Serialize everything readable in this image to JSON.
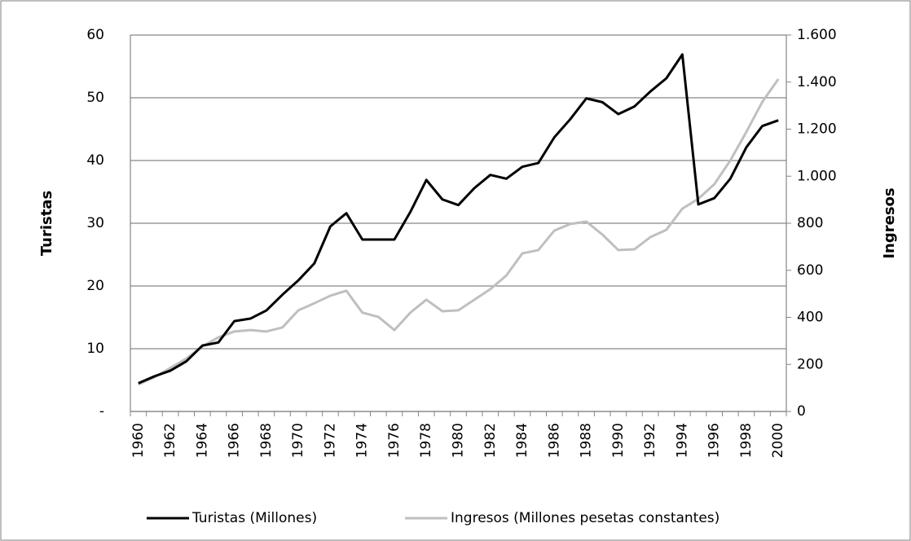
{
  "chart_data": {
    "type": "line",
    "y_label": "Turistas",
    "y2_label": "Ingresos",
    "categories": [
      "1960",
      null,
      "1962",
      null,
      "1964",
      null,
      "1966",
      null,
      "1968",
      null,
      "1970",
      null,
      "1972",
      null,
      "1974",
      null,
      "1976",
      null,
      "1978",
      null,
      "1980",
      null,
      "1982",
      null,
      "1984",
      null,
      "1986",
      null,
      "1988",
      null,
      "1990",
      null,
      "1992",
      null,
      "1994",
      null,
      "1996",
      null,
      "1998",
      null,
      "2000"
    ],
    "series": [
      {
        "name": "Turistas (Millones)",
        "color": "#000000",
        "values": [
          4.5,
          5.6,
          6.5,
          8.0,
          10.5,
          11.0,
          14.4,
          14.8,
          16.1,
          18.6,
          20.9,
          23.6,
          29.5,
          31.6,
          27.4,
          27.4,
          27.4,
          31.8,
          36.9,
          33.8,
          32.9,
          35.6,
          37.7,
          37.1,
          39.0,
          39.6,
          43.7,
          46.6,
          49.9,
          49.3,
          47.4,
          48.6,
          51.0,
          53.1,
          56.9,
          33.0,
          34.0,
          37.1,
          42.1,
          45.5,
          46.4
        ]
      },
      {
        "name": "Ingresos (Millones pesetas constantes)",
        "color": "#bfbfbf",
        "axis": "y2",
        "values": [
          115,
          145,
          185,
          225,
          277,
          315,
          340,
          346,
          340,
          357,
          430,
          460,
          492,
          513,
          420,
          402,
          346,
          420,
          475,
          426,
          430,
          475,
          520,
          578,
          672,
          686,
          769,
          797,
          807,
          752,
          686,
          689,
          741,
          772,
          862,
          904,
          966,
          1067,
          1188,
          1316,
          1413
        ]
      }
    ],
    "ylim": [
      0,
      60
    ],
    "yticks": [
      {
        "value": 0,
        "label": "-"
      },
      10,
      20,
      30,
      40,
      50,
      60
    ],
    "y2lim": [
      0,
      1600
    ],
    "y2ticks": [
      0,
      200,
      400,
      600,
      800,
      {
        "value": 1000,
        "label": "1.000"
      },
      {
        "value": 1200,
        "label": "1.200"
      },
      {
        "value": 1400,
        "label": "1.400"
      },
      {
        "value": 1600,
        "label": "1.600"
      }
    ],
    "grid": true,
    "legend": "bottom"
  }
}
